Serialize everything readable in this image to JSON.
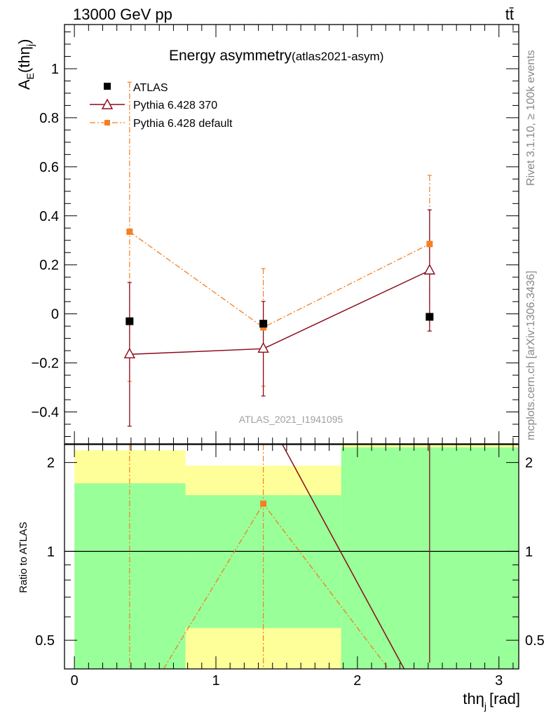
{
  "header": {
    "energy": "13000 GeV pp",
    "process": "tt̄"
  },
  "side": {
    "rivet": "Rivet 3.1.10, ≥ 100k events",
    "mcplots": "mcplots.cern.ch [arXiv:1306.3436]"
  },
  "chart_data": [
    {
      "id": "main",
      "type": "scatter",
      "title": "Energy asymmetry",
      "title_suffix": "(atlas2021-asym)",
      "ylabel": "A_E(thη_j)",
      "ylabel_main": "A",
      "ylabel_sub": "E",
      "ylabel_paren_open": "(thη",
      "ylabel_paren_sub": "j",
      "ylabel_paren_close": ")",
      "watermark": "ATLAS_2021_I1941095",
      "xlim": [
        -0.07,
        3.14
      ],
      "ylim": [
        -0.53,
        1.18
      ],
      "yticks": [
        -0.4,
        -0.2,
        0,
        0.2,
        0.4,
        0.6,
        0.8,
        1
      ],
      "ytick_labels": [
        "−0.4",
        "−0.2",
        "0",
        "0.2",
        "0.4",
        "0.6",
        "0.8",
        "1"
      ],
      "legend_position": "top-left",
      "series": [
        {
          "name": "ATLAS",
          "color": "#000000",
          "marker": "square",
          "x": [
            0.39,
            1.335,
            2.51
          ],
          "y": [
            -0.03,
            -0.04,
            -0.012
          ]
        },
        {
          "name": "Pythia 6.428 370",
          "color": "#8b0a1a",
          "marker": "open-triangle",
          "line": "solid",
          "x": [
            0.39,
            1.335,
            2.51
          ],
          "y": [
            -0.165,
            -0.142,
            0.177
          ],
          "yerr_low": [
            0.293,
            0.193,
            0.247
          ],
          "yerr_high": [
            0.293,
            0.193,
            0.247
          ]
        },
        {
          "name": "Pythia 6.428 default",
          "color": "#f57f24",
          "marker": "square",
          "line": "dashdot",
          "x": [
            0.39,
            1.335,
            2.51
          ],
          "y": [
            0.335,
            -0.055,
            0.285
          ],
          "yerr_low": [
            0.61,
            0.24,
            0.355
          ],
          "yerr_high": [
            0.61,
            0.24,
            0.28
          ]
        }
      ]
    },
    {
      "id": "ratio",
      "type": "line",
      "ylabel": "Ratio to ATLAS",
      "xlabel": "thη_j [rad]",
      "xlabel_main": "thη",
      "xlabel_sub": "j",
      "xlabel_unit": "[rad]",
      "xlim": [
        -0.07,
        3.14
      ],
      "ylim": [
        0.4,
        2.3
      ],
      "yscale": "log",
      "yticks": [
        0.5,
        1,
        2
      ],
      "ytick_labels": [
        "0.5",
        "1",
        "2"
      ],
      "xticks": [
        0,
        1,
        2,
        3
      ],
      "xtick_labels": [
        "0",
        "1",
        "2",
        "3"
      ],
      "bins": [
        {
          "xlo": 0.0,
          "xhi": 0.785,
          "green_lo": 0.4,
          "green_hi": 1.7,
          "yellow_lo": 0.4,
          "yellow_hi": 2.2
        },
        {
          "xlo": 0.785,
          "xhi": 1.885,
          "green_lo": 0.55,
          "green_hi": 1.55,
          "yellow_lo": 0.4,
          "yellow_hi": 1.95
        },
        {
          "xlo": 1.885,
          "xhi": 3.14,
          "green_lo": 0.4,
          "green_hi": 2.25,
          "yellow_lo": 0.4,
          "yellow_hi": 2.3
        }
      ],
      "series": [
        {
          "name": "Pythia 6.428 370",
          "color": "#8b0a1a",
          "line": "solid",
          "x": [
            1.47,
            2.33
          ],
          "y": [
            2.3,
            0.4
          ],
          "vertical_line_x": 2.51
        },
        {
          "name": "Pythia 6.428 default",
          "color": "#f57f24",
          "line": "dashdot",
          "x": [
            0.63,
            1.335,
            2.22
          ],
          "y": [
            0.4,
            1.45,
            0.4
          ],
          "marker_x": 1.335,
          "marker_y": 1.45,
          "vertical_line_x": [
            0.39,
            1.335
          ]
        }
      ]
    }
  ]
}
